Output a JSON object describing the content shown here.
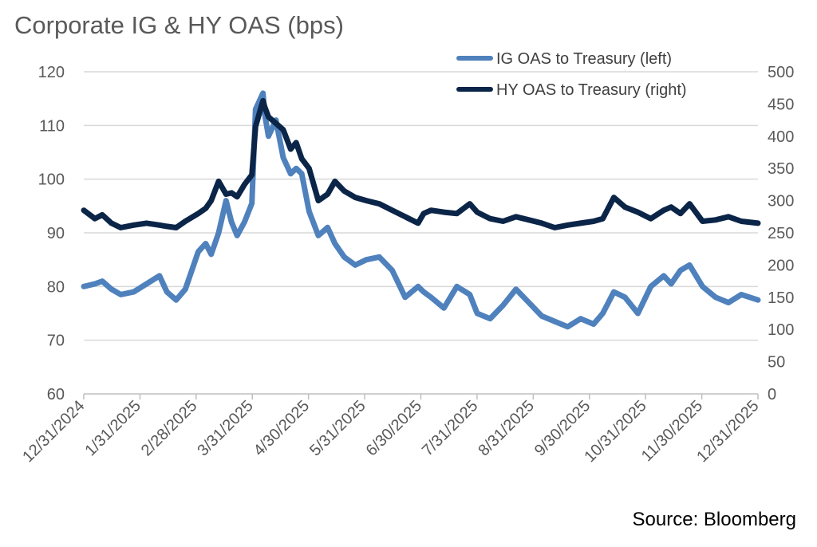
{
  "title": "Corporate IG & HY OAS (bps)",
  "source": "Source: Bloomberg",
  "colors": {
    "ig": "#4F81BD",
    "hy": "#0B2548",
    "grid": "#D9D9D9",
    "axis": "#BFBFBF"
  },
  "chart_data": {
    "type": "line",
    "x_tick_labels": [
      "12/31/2024",
      "1/31/2025",
      "2/28/2025",
      "3/31/2025",
      "4/30/2025",
      "5/31/2025",
      "6/30/2025",
      "7/31/2025",
      "8/31/2025",
      "9/30/2025",
      "10/31/2025",
      "11/30/2025",
      "12/31/2025"
    ],
    "xlim": [
      "2024-12-31",
      "2025-12-31"
    ],
    "y_left": {
      "ylim": [
        60,
        120
      ],
      "ticks": [
        60,
        70,
        80,
        90,
        100,
        110,
        120
      ]
    },
    "y_right": {
      "ylim": [
        0,
        500
      ],
      "ticks": [
        0,
        50,
        100,
        150,
        200,
        250,
        300,
        350,
        400,
        450,
        500
      ]
    },
    "grid": true,
    "legend_position": "top-right",
    "series": [
      {
        "name": "IG OAS to Treasury (left)",
        "axis": "left",
        "x": [
          "2024-12-31",
          "2025-01-06",
          "2025-01-10",
          "2025-01-15",
          "2025-01-20",
          "2025-01-27",
          "2025-02-03",
          "2025-02-10",
          "2025-02-14",
          "2025-02-19",
          "2025-02-24",
          "2025-03-03",
          "2025-03-07",
          "2025-03-10",
          "2025-03-14",
          "2025-03-18",
          "2025-03-21",
          "2025-03-24",
          "2025-03-28",
          "2025-04-01",
          "2025-04-03",
          "2025-04-07",
          "2025-04-08",
          "2025-04-10",
          "2025-04-14",
          "2025-04-18",
          "2025-04-22",
          "2025-04-25",
          "2025-04-28",
          "2025-05-02",
          "2025-05-07",
          "2025-05-12",
          "2025-05-16",
          "2025-05-21",
          "2025-05-27",
          "2025-06-02",
          "2025-06-09",
          "2025-06-16",
          "2025-06-23",
          "2025-06-30",
          "2025-07-03",
          "2025-07-07",
          "2025-07-14",
          "2025-07-21",
          "2025-07-28",
          "2025-08-01",
          "2025-08-08",
          "2025-08-15",
          "2025-08-22",
          "2025-08-29",
          "2025-09-05",
          "2025-09-12",
          "2025-09-19",
          "2025-09-26",
          "2025-10-03",
          "2025-10-08",
          "2025-10-14",
          "2025-10-20",
          "2025-10-27",
          "2025-11-03",
          "2025-11-10",
          "2025-11-14",
          "2025-11-19",
          "2025-11-24",
          "2025-12-01",
          "2025-12-08",
          "2025-12-15",
          "2025-12-22",
          "2025-12-31"
        ],
        "values": [
          80,
          80.5,
          81,
          79.5,
          78.5,
          79,
          80.5,
          82,
          79,
          77.5,
          79.5,
          86.5,
          88,
          86,
          90,
          96,
          92,
          89.5,
          92,
          95.5,
          113,
          116,
          112,
          108,
          111,
          104,
          101,
          102,
          101,
          94,
          89.5,
          91,
          88,
          85.5,
          84,
          85,
          85.5,
          83,
          78,
          80,
          79,
          78,
          76,
          80,
          78.5,
          75,
          74,
          76.5,
          79.5,
          77,
          74.5,
          73.5,
          72.5,
          74,
          73,
          75,
          79,
          78,
          75,
          80,
          82,
          80.5,
          83,
          84,
          80,
          78,
          77,
          78.5,
          77.5
        ]
      },
      {
        "name": "HY OAS to Treasury (right)",
        "axis": "right",
        "x": [
          "2024-12-31",
          "2025-01-06",
          "2025-01-10",
          "2025-01-15",
          "2025-01-20",
          "2025-01-27",
          "2025-02-03",
          "2025-02-10",
          "2025-02-14",
          "2025-02-19",
          "2025-02-24",
          "2025-03-03",
          "2025-03-07",
          "2025-03-10",
          "2025-03-14",
          "2025-03-18",
          "2025-03-21",
          "2025-03-24",
          "2025-03-28",
          "2025-04-01",
          "2025-04-03",
          "2025-04-07",
          "2025-04-08",
          "2025-04-10",
          "2025-04-14",
          "2025-04-18",
          "2025-04-22",
          "2025-04-25",
          "2025-04-28",
          "2025-05-02",
          "2025-05-07",
          "2025-05-12",
          "2025-05-16",
          "2025-05-21",
          "2025-05-27",
          "2025-06-02",
          "2025-06-09",
          "2025-06-16",
          "2025-06-23",
          "2025-06-30",
          "2025-07-03",
          "2025-07-07",
          "2025-07-14",
          "2025-07-21",
          "2025-07-28",
          "2025-08-01",
          "2025-08-08",
          "2025-08-15",
          "2025-08-22",
          "2025-08-29",
          "2025-09-05",
          "2025-09-12",
          "2025-09-19",
          "2025-09-26",
          "2025-10-03",
          "2025-10-08",
          "2025-10-14",
          "2025-10-20",
          "2025-10-27",
          "2025-11-03",
          "2025-11-10",
          "2025-11-14",
          "2025-11-19",
          "2025-11-24",
          "2025-12-01",
          "2025-12-08",
          "2025-12-15",
          "2025-12-22",
          "2025-12-31"
        ],
        "values": [
          285,
          272,
          278,
          265,
          258,
          262,
          265,
          262,
          260,
          258,
          268,
          280,
          288,
          300,
          330,
          310,
          312,
          306,
          325,
          340,
          415,
          455,
          445,
          430,
          420,
          410,
          380,
          390,
          365,
          350,
          300,
          310,
          330,
          315,
          305,
          300,
          295,
          285,
          275,
          265,
          280,
          285,
          282,
          280,
          295,
          282,
          272,
          268,
          275,
          270,
          265,
          258,
          262,
          265,
          268,
          272,
          305,
          290,
          282,
          272,
          285,
          290,
          280,
          295,
          268,
          270,
          275,
          268,
          265
        ]
      }
    ]
  }
}
